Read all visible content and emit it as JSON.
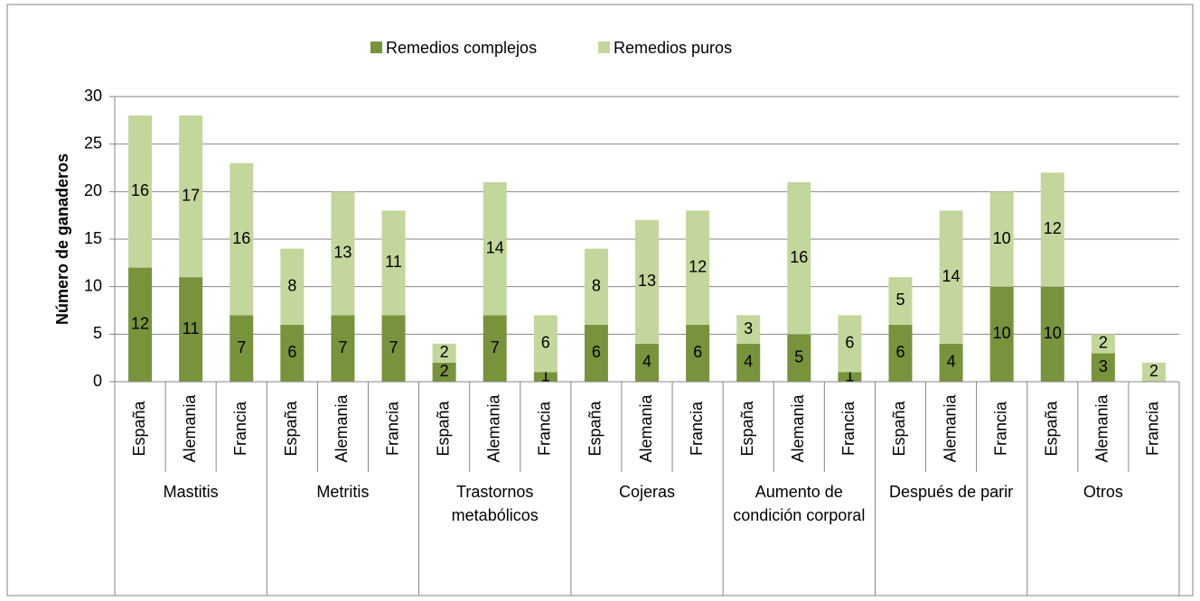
{
  "chart_data": {
    "type": "stacked_bar",
    "groups": [
      {
        "label": "Mastitis",
        "categories": [
          "España",
          "Alemania",
          "Francia"
        ]
      },
      {
        "label": "Metritis",
        "categories": [
          "España",
          "Alemania",
          "Francia"
        ]
      },
      {
        "label": "Trastornos metabólicos",
        "categories": [
          "España",
          "Alemania",
          "Francia"
        ]
      },
      {
        "label": "Cojeras",
        "categories": [
          "España",
          "Alemania",
          "Francia"
        ]
      },
      {
        "label": "Aumento de condición corporal",
        "categories": [
          "España",
          "Alemania",
          "Francia"
        ]
      },
      {
        "label": "Después de parir",
        "categories": [
          "España",
          "Alemania",
          "Francia"
        ]
      },
      {
        "label": "Otros",
        "categories": [
          "España",
          "Alemania",
          "Francia"
        ]
      }
    ],
    "series": [
      {
        "name": "Remedios complejos",
        "color": "#77933c",
        "values": [
          12,
          11,
          7,
          6,
          7,
          7,
          2,
          7,
          1,
          6,
          4,
          6,
          4,
          5,
          1,
          6,
          4,
          10,
          10,
          3,
          0
        ]
      },
      {
        "name": "Remedios puros",
        "color": "#c3d69b",
        "values": [
          16,
          17,
          16,
          8,
          13,
          11,
          2,
          14,
          6,
          8,
          13,
          12,
          3,
          16,
          6,
          5,
          14,
          10,
          12,
          2,
          2
        ]
      }
    ],
    "y_label": "Número de ganaderos",
    "ylim": [
      0,
      30
    ],
    "yticks": [
      0,
      5,
      10,
      15,
      20,
      25,
      30
    ],
    "grid": true,
    "legend": "top"
  }
}
